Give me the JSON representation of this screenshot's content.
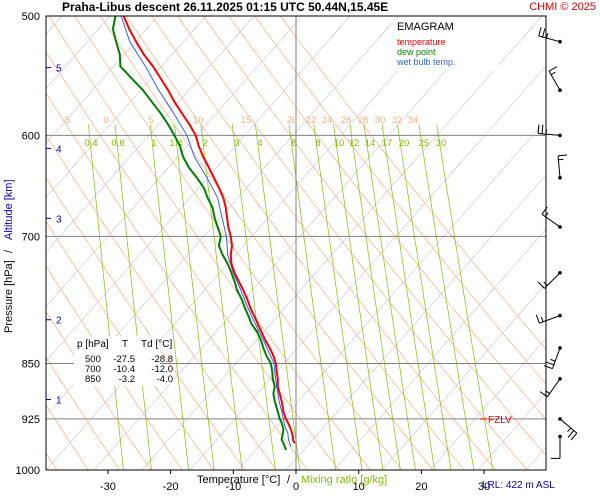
{
  "header": {
    "title": "Praha-Libus   descent   26.11.2025 01:15 UTC   50.44N,15.45E",
    "credit": "CHMI © 2025"
  },
  "legend": {
    "title": "EMAGRAM",
    "items": [
      {
        "label": "temperature",
        "color": "#ff0000"
      },
      {
        "label": "dew point",
        "color": "#008000"
      },
      {
        "label": "wet bulb temp.",
        "color": "#3060ff"
      }
    ]
  },
  "table": {
    "headers": [
      "p [hPa]",
      "T",
      "Td [°C]"
    ],
    "rows": [
      [
        "500",
        "-27.5",
        "-28.8"
      ],
      [
        "700",
        "-10.4",
        "-12.0"
      ],
      [
        "850",
        "-3.2",
        "-4.0"
      ]
    ]
  },
  "fzlv_label": "FZLV",
  "lrl_label": "LRL: 422 m ASL",
  "colors": {
    "temperature": "#ff0000",
    "dewpoint": "#008000",
    "wetbulb": "#3060ff",
    "dry_adiabat": "#ffb080",
    "mixing_ratio": "#80c000",
    "isotherm_diag": "#c8c8d0",
    "grid": "#808080",
    "altitude": "#0000c0",
    "fzlv": "#e00000"
  },
  "chart_data": {
    "type": "line",
    "diagram": "emagram",
    "xlabel": "Temperature [°C]",
    "xlabel_extra": "Mixing ratio [g/kg]",
    "ylabel": "Pressure [hPa]",
    "ylabel_extra": "Altitude [km]",
    "xlim": [
      -40,
      33
    ],
    "ylim": [
      1000,
      500
    ],
    "y_scale": "log",
    "x_ticks": [
      -30,
      -20,
      -10,
      0,
      10,
      20,
      30
    ],
    "y_ticks": [
      500,
      600,
      700,
      850,
      925,
      1000
    ],
    "altitude_ticks": [
      {
        "km": 1,
        "p": 898
      },
      {
        "km": 2,
        "p": 795
      },
      {
        "km": 3,
        "p": 681
      },
      {
        "km": 4,
        "p": 612
      },
      {
        "km": 5,
        "p": 541
      }
    ],
    "dry_adiabat_labels": [
      "-5",
      "0",
      "5",
      "10",
      "15",
      "20",
      "22",
      "24",
      "26",
      "28",
      "30",
      "32",
      "34"
    ],
    "mixing_ratio_labels": [
      "0.4",
      "0.6",
      "1",
      "1.4",
      "2",
      "3",
      "4",
      "6",
      "8",
      "10",
      "12",
      "14",
      "17",
      "20",
      "25",
      "30"
    ],
    "fzlv_p": 925,
    "series": [
      {
        "name": "temperature",
        "points": [
          [
            960,
            -0.2
          ],
          [
            955,
            -0.5
          ],
          [
            950,
            -0.5
          ],
          [
            940,
            -0.8
          ],
          [
            930,
            -1.3
          ],
          [
            925,
            -1.6
          ],
          [
            915,
            -2.0
          ],
          [
            900,
            -2.3
          ],
          [
            890,
            -2.6
          ],
          [
            880,
            -2.9
          ],
          [
            870,
            -2.9
          ],
          [
            860,
            -3.1
          ],
          [
            850,
            -3.2
          ],
          [
            840,
            -3.6
          ],
          [
            830,
            -4.2
          ],
          [
            820,
            -4.9
          ],
          [
            810,
            -5.5
          ],
          [
            800,
            -6.1
          ],
          [
            790,
            -6.7
          ],
          [
            780,
            -7.3
          ],
          [
            770,
            -7.8
          ],
          [
            760,
            -8.4
          ],
          [
            750,
            -9.1
          ],
          [
            740,
            -9.8
          ],
          [
            730,
            -10.3
          ],
          [
            720,
            -10.4
          ],
          [
            710,
            -10.2
          ],
          [
            700,
            -10.4
          ],
          [
            690,
            -10.8
          ],
          [
            680,
            -11.0
          ],
          [
            670,
            -11.2
          ],
          [
            660,
            -11.6
          ],
          [
            650,
            -12.3
          ],
          [
            640,
            -13.1
          ],
          [
            630,
            -13.9
          ],
          [
            620,
            -14.8
          ],
          [
            610,
            -15.5
          ],
          [
            600,
            -16.0
          ],
          [
            590,
            -17.0
          ],
          [
            580,
            -18.2
          ],
          [
            570,
            -19.4
          ],
          [
            560,
            -20.4
          ],
          [
            550,
            -21.6
          ],
          [
            540,
            -22.8
          ],
          [
            530,
            -24.3
          ],
          [
            520,
            -25.5
          ],
          [
            510,
            -26.6
          ],
          [
            500,
            -27.5
          ]
        ]
      },
      {
        "name": "dew point",
        "points": [
          [
            970,
            -1.6
          ],
          [
            960,
            -2.0
          ],
          [
            955,
            -2.3
          ],
          [
            950,
            -2.2
          ],
          [
            940,
            -2.0
          ],
          [
            930,
            -2.3
          ],
          [
            925,
            -2.6
          ],
          [
            915,
            -2.9
          ],
          [
            900,
            -3.4
          ],
          [
            890,
            -3.6
          ],
          [
            880,
            -3.4
          ],
          [
            870,
            -3.7
          ],
          [
            860,
            -3.8
          ],
          [
            850,
            -4.0
          ],
          [
            840,
            -4.7
          ],
          [
            830,
            -5.2
          ],
          [
            820,
            -5.6
          ],
          [
            810,
            -6.2
          ],
          [
            800,
            -7.1
          ],
          [
            790,
            -7.6
          ],
          [
            780,
            -8.2
          ],
          [
            770,
            -8.7
          ],
          [
            760,
            -9.4
          ],
          [
            750,
            -9.8
          ],
          [
            740,
            -10.3
          ],
          [
            730,
            -10.9
          ],
          [
            720,
            -11.7
          ],
          [
            710,
            -12.3
          ],
          [
            700,
            -12.0
          ],
          [
            690,
            -12.5
          ],
          [
            680,
            -13.0
          ],
          [
            670,
            -13.3
          ],
          [
            660,
            -14.1
          ],
          [
            650,
            -14.7
          ],
          [
            640,
            -15.8
          ],
          [
            630,
            -17.1
          ],
          [
            620,
            -18.0
          ],
          [
            610,
            -18.5
          ],
          [
            600,
            -19.4
          ],
          [
            590,
            -20.4
          ],
          [
            580,
            -21.6
          ],
          [
            570,
            -23.0
          ],
          [
            560,
            -24.4
          ],
          [
            550,
            -26.2
          ],
          [
            540,
            -28.0
          ],
          [
            530,
            -28.1
          ],
          [
            520,
            -28.7
          ],
          [
            510,
            -29.2
          ],
          [
            500,
            -28.8
          ]
        ]
      },
      {
        "name": "wet bulb temp.",
        "points": [
          [
            965,
            -0.8
          ],
          [
            955,
            -1.2
          ],
          [
            945,
            -1.3
          ],
          [
            935,
            -1.8
          ],
          [
            925,
            -2.0
          ],
          [
            900,
            -2.7
          ],
          [
            880,
            -3.1
          ],
          [
            860,
            -3.4
          ],
          [
            850,
            -3.5
          ],
          [
            820,
            -5.2
          ],
          [
            800,
            -6.5
          ],
          [
            780,
            -7.7
          ],
          [
            760,
            -8.8
          ],
          [
            740,
            -10.0
          ],
          [
            720,
            -10.9
          ],
          [
            700,
            -11.1
          ],
          [
            680,
            -11.8
          ],
          [
            660,
            -12.5
          ],
          [
            640,
            -14.2
          ],
          [
            620,
            -16.2
          ],
          [
            600,
            -17.4
          ],
          [
            580,
            -19.5
          ],
          [
            560,
            -21.9
          ],
          [
            540,
            -24.0
          ],
          [
            520,
            -26.5
          ],
          [
            500,
            -27.9
          ]
        ]
      }
    ],
    "wind_barbs": [
      {
        "p": 520,
        "dir": 285,
        "speed_kt": 25
      },
      {
        "p": 560,
        "dir": 330,
        "speed_kt": 15
      },
      {
        "p": 600,
        "dir": 275,
        "speed_kt": 25
      },
      {
        "p": 640,
        "dir": 355,
        "speed_kt": 15
      },
      {
        "p": 690,
        "dir": 305,
        "speed_kt": 15
      },
      {
        "p": 740,
        "dir": 225,
        "speed_kt": 15
      },
      {
        "p": 790,
        "dir": 250,
        "speed_kt": 15
      },
      {
        "p": 830,
        "dir": 200,
        "speed_kt": 25
      },
      {
        "p": 870,
        "dir": 215,
        "speed_kt": 15
      },
      {
        "p": 925,
        "dir": 130,
        "speed_kt": 25
      },
      {
        "p": 950,
        "dir": 180,
        "speed_kt": 10
      }
    ]
  }
}
